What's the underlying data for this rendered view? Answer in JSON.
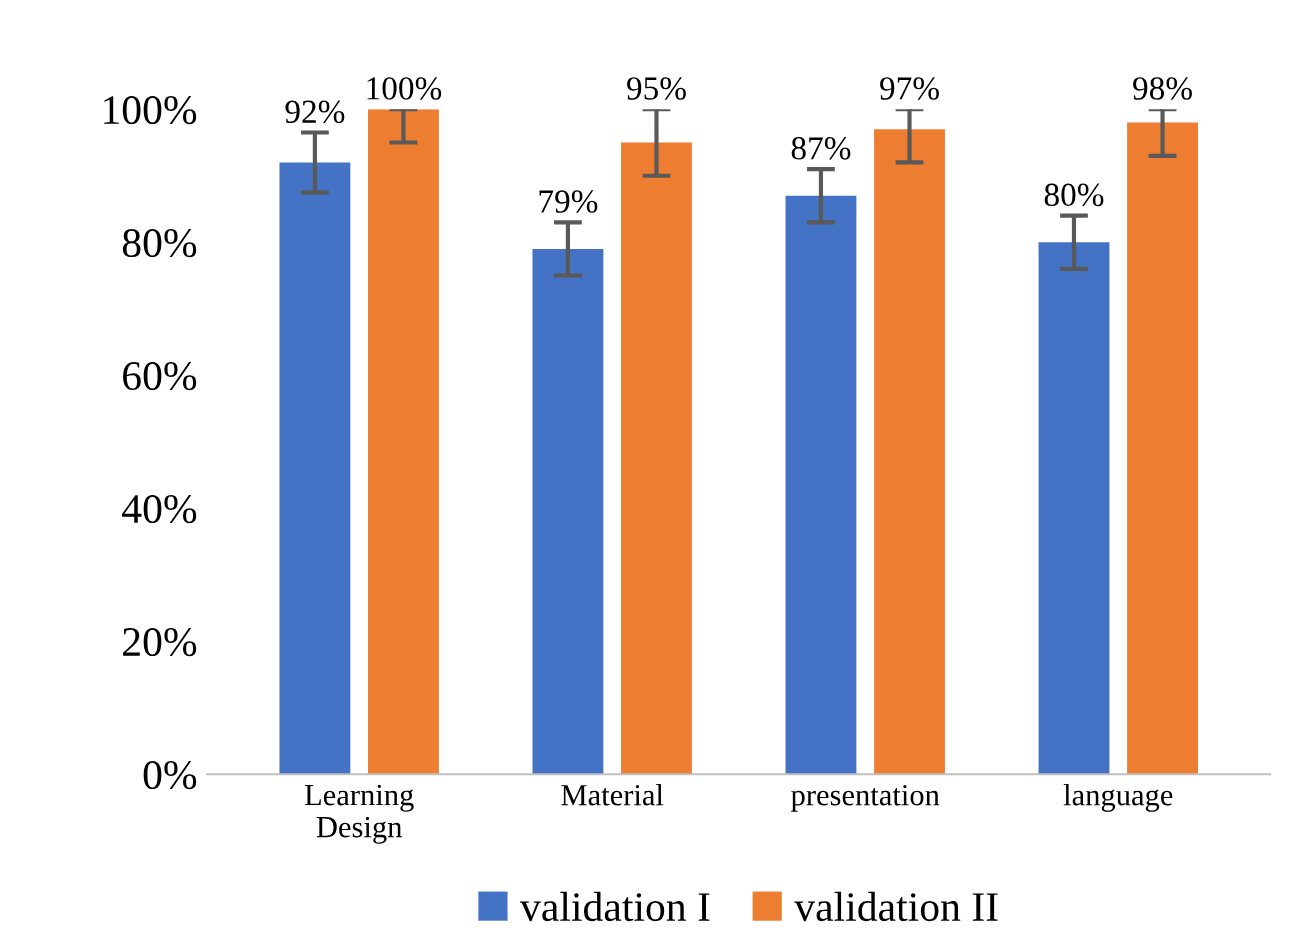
{
  "chart_data": {
    "type": "bar",
    "categories": [
      "Learning\nDesign",
      "Material",
      "presentation",
      "language"
    ],
    "series": [
      {
        "name": "validation I",
        "color": "#4472c4",
        "values": [
          92,
          79,
          87,
          80
        ],
        "errors": [
          4.5,
          4,
          4,
          4
        ],
        "value_labels": [
          "92%",
          "79%",
          "87%",
          "80%"
        ]
      },
      {
        "name": "validation II",
        "color": "#ed7d31",
        "values": [
          100,
          95,
          97,
          98
        ],
        "errors": [
          [
            95,
            100
          ],
          5,
          [
            92,
            100
          ],
          [
            93,
            100
          ]
        ],
        "value_labels": [
          "100%",
          "95%",
          "97%",
          "98%"
        ]
      }
    ],
    "ylim": [
      0,
      100
    ],
    "yticks": [
      {
        "value": 0,
        "label": "0%"
      },
      {
        "value": 20,
        "label": "20%"
      },
      {
        "value": 40,
        "label": "40%"
      },
      {
        "value": 60,
        "label": "60%"
      },
      {
        "value": 80,
        "label": "80%"
      },
      {
        "value": 100,
        "label": "100%"
      }
    ],
    "grid": false,
    "legend": "bottom"
  }
}
